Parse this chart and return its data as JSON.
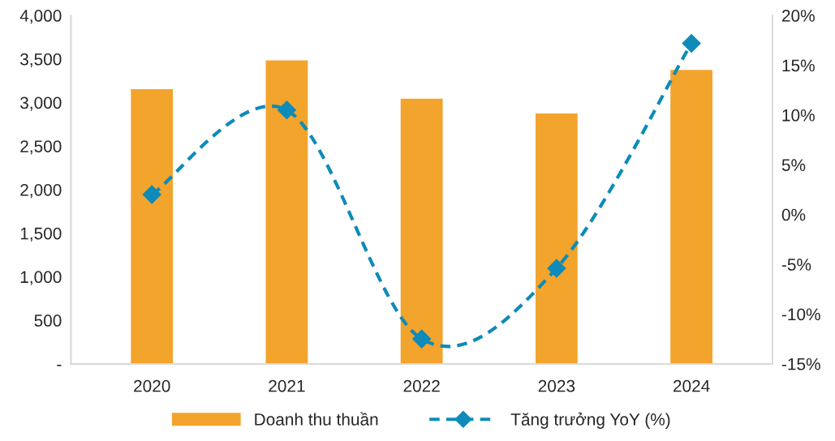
{
  "chart_data": {
    "type": "bar",
    "categories": [
      "2020",
      "2021",
      "2022",
      "2023",
      "2024"
    ],
    "series": [
      {
        "name": "Doanh thu thuần",
        "color": "#f2a42c",
        "values": [
          3160,
          3490,
          3050,
          2880,
          3380
        ]
      },
      {
        "name": "Tăng trưởng YoY (%)",
        "type": "line",
        "axis": "y2",
        "color": "#0e8bb8",
        "marker": "diamond",
        "line_style": "dashed",
        "values": [
          2.0,
          10.5,
          -12.5,
          -5.4,
          17.2
        ]
      }
    ],
    "ylim": [
      0,
      4000
    ],
    "yticks": [
      {
        "value": 0,
        "label": "-"
      },
      {
        "value": 500,
        "label": "500"
      },
      {
        "value": 1000,
        "label": "1,000"
      },
      {
        "value": 1500,
        "label": "1,500"
      },
      {
        "value": 2000,
        "label": "2,000"
      },
      {
        "value": 2500,
        "label": "2,500"
      },
      {
        "value": 3000,
        "label": "3,000"
      },
      {
        "value": 3500,
        "label": "3,500"
      },
      {
        "value": 4000,
        "label": "4,000"
      }
    ],
    "y2lim": [
      -15,
      20
    ],
    "y2ticks": [
      {
        "value": -15,
        "label": "-15%"
      },
      {
        "value": -10,
        "label": "-10%"
      },
      {
        "value": -5,
        "label": "-5%"
      },
      {
        "value": 0,
        "label": "0%"
      },
      {
        "value": 5,
        "label": "5%"
      },
      {
        "value": 10,
        "label": "10%"
      },
      {
        "value": 15,
        "label": "15%"
      },
      {
        "value": 20,
        "label": "20%"
      }
    ],
    "grid": false,
    "legend": "bottom"
  }
}
